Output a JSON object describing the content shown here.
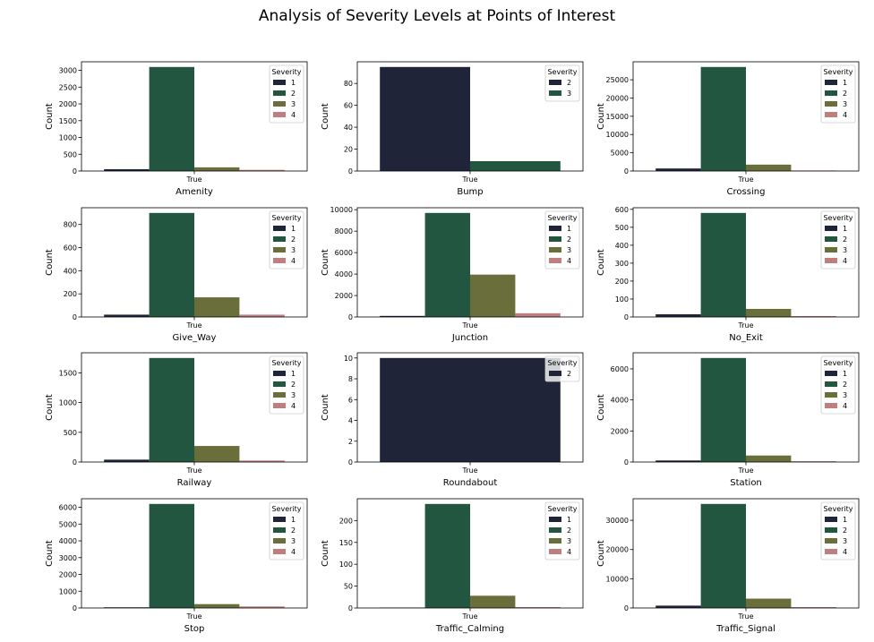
{
  "title": "Analysis of Severity Levels at Points of Interest",
  "colors": {
    "1": "#1f2438",
    "2": "#235640",
    "3": "#6a6e3a",
    "4": "#bf7f7f"
  },
  "chart_data": [
    {
      "type": "bar",
      "xlabel": "Amenity",
      "ylabel": "Count",
      "categories": [
        "True"
      ],
      "legend_title": "Severity",
      "ylim": [
        0,
        3255
      ],
      "yticks": [
        0,
        500,
        1000,
        1500,
        2000,
        2500,
        3000
      ],
      "series": [
        {
          "name": "1",
          "values": [
            55
          ]
        },
        {
          "name": "2",
          "values": [
            3100
          ]
        },
        {
          "name": "3",
          "values": [
            110
          ]
        },
        {
          "name": "4",
          "values": [
            35
          ]
        }
      ]
    },
    {
      "type": "bar",
      "xlabel": "Bump",
      "ylabel": "Count",
      "categories": [
        "True"
      ],
      "legend_title": "Severity",
      "ylim": [
        0,
        99.75
      ],
      "yticks": [
        0,
        20,
        40,
        60,
        80
      ],
      "series": [
        {
          "name": "2",
          "values": [
            95
          ]
        },
        {
          "name": "3",
          "values": [
            9
          ]
        }
      ]
    },
    {
      "type": "bar",
      "xlabel": "Crossing",
      "ylabel": "Count",
      "categories": [
        "True"
      ],
      "legend_title": "Severity",
      "ylim": [
        0,
        29925
      ],
      "yticks": [
        0,
        5000,
        10000,
        15000,
        20000,
        25000
      ],
      "series": [
        {
          "name": "1",
          "values": [
            700
          ]
        },
        {
          "name": "2",
          "values": [
            28500
          ]
        },
        {
          "name": "3",
          "values": [
            1750
          ]
        },
        {
          "name": "4",
          "values": [
            150
          ]
        }
      ]
    },
    {
      "type": "bar",
      "xlabel": "Give_Way",
      "ylabel": "Count",
      "categories": [
        "True"
      ],
      "legend_title": "Severity",
      "ylim": [
        0,
        945
      ],
      "yticks": [
        0,
        200,
        400,
        600,
        800
      ],
      "series": [
        {
          "name": "1",
          "values": [
            20
          ]
        },
        {
          "name": "2",
          "values": [
            900
          ]
        },
        {
          "name": "3",
          "values": [
            170
          ]
        },
        {
          "name": "4",
          "values": [
            20
          ]
        }
      ]
    },
    {
      "type": "bar",
      "xlabel": "Junction",
      "ylabel": "Count",
      "categories": [
        "True"
      ],
      "legend_title": "Severity",
      "ylim": [
        0,
        10185
      ],
      "yticks": [
        0,
        2000,
        4000,
        6000,
        8000,
        10000
      ],
      "series": [
        {
          "name": "1",
          "values": [
            100
          ]
        },
        {
          "name": "2",
          "values": [
            9700
          ]
        },
        {
          "name": "3",
          "values": [
            3950
          ]
        },
        {
          "name": "4",
          "values": [
            350
          ]
        }
      ]
    },
    {
      "type": "bar",
      "xlabel": "No_Exit",
      "ylabel": "Count",
      "categories": [
        "True"
      ],
      "legend_title": "Severity",
      "ylim": [
        0,
        609
      ],
      "yticks": [
        0,
        100,
        200,
        300,
        400,
        500,
        600
      ],
      "series": [
        {
          "name": "1",
          "values": [
            15
          ]
        },
        {
          "name": "2",
          "values": [
            580
          ]
        },
        {
          "name": "3",
          "values": [
            45
          ]
        },
        {
          "name": "4",
          "values": [
            5
          ]
        }
      ]
    },
    {
      "type": "bar",
      "xlabel": "Railway",
      "ylabel": "Count",
      "categories": [
        "True"
      ],
      "legend_title": "Severity",
      "ylim": [
        0,
        1837.5
      ],
      "yticks": [
        0,
        500,
        1000,
        1500
      ],
      "series": [
        {
          "name": "1",
          "values": [
            40
          ]
        },
        {
          "name": "2",
          "values": [
            1750
          ]
        },
        {
          "name": "3",
          "values": [
            270
          ]
        },
        {
          "name": "4",
          "values": [
            25
          ]
        }
      ]
    },
    {
      "type": "bar",
      "xlabel": "Roundabout",
      "ylabel": "Count",
      "categories": [
        "True"
      ],
      "legend_title": "Severity",
      "ylim": [
        0,
        10.5
      ],
      "yticks": [
        0,
        2,
        4,
        6,
        8,
        10
      ],
      "series": [
        {
          "name": "2",
          "values": [
            10
          ]
        }
      ]
    },
    {
      "type": "bar",
      "xlabel": "Station",
      "ylabel": "Count",
      "categories": [
        "True"
      ],
      "legend_title": "Severity",
      "ylim": [
        0,
        7035
      ],
      "yticks": [
        0,
        2000,
        4000,
        6000
      ],
      "series": [
        {
          "name": "1",
          "values": [
            100
          ]
        },
        {
          "name": "2",
          "values": [
            6700
          ]
        },
        {
          "name": "3",
          "values": [
            420
          ]
        },
        {
          "name": "4",
          "values": [
            50
          ]
        }
      ]
    },
    {
      "type": "bar",
      "xlabel": "Stop",
      "ylabel": "Count",
      "categories": [
        "True"
      ],
      "legend_title": "Severity",
      "ylim": [
        0,
        6510
      ],
      "yticks": [
        0,
        1000,
        2000,
        3000,
        4000,
        5000,
        6000
      ],
      "series": [
        {
          "name": "1",
          "values": [
            40
          ]
        },
        {
          "name": "2",
          "values": [
            6200
          ]
        },
        {
          "name": "3",
          "values": [
            230
          ]
        },
        {
          "name": "4",
          "values": [
            90
          ]
        }
      ]
    },
    {
      "type": "bar",
      "xlabel": "Traffic_Calming",
      "ylabel": "Count",
      "categories": [
        "True"
      ],
      "legend_title": "Severity",
      "ylim": [
        0,
        249.9
      ],
      "yticks": [
        0,
        50,
        100,
        150,
        200
      ],
      "series": [
        {
          "name": "1",
          "values": [
            1
          ]
        },
        {
          "name": "2",
          "values": [
            238
          ]
        },
        {
          "name": "3",
          "values": [
            28
          ]
        },
        {
          "name": "4",
          "values": [
            2
          ]
        }
      ]
    },
    {
      "type": "bar",
      "xlabel": "Traffic_Signal",
      "ylabel": "Count",
      "categories": [
        "True"
      ],
      "legend_title": "Severity",
      "ylim": [
        0,
        37380
      ],
      "yticks": [
        0,
        10000,
        20000,
        30000
      ],
      "series": [
        {
          "name": "1",
          "values": [
            800
          ]
        },
        {
          "name": "2",
          "values": [
            35600
          ]
        },
        {
          "name": "3",
          "values": [
            3200
          ]
        },
        {
          "name": "4",
          "values": [
            300
          ]
        }
      ]
    }
  ]
}
